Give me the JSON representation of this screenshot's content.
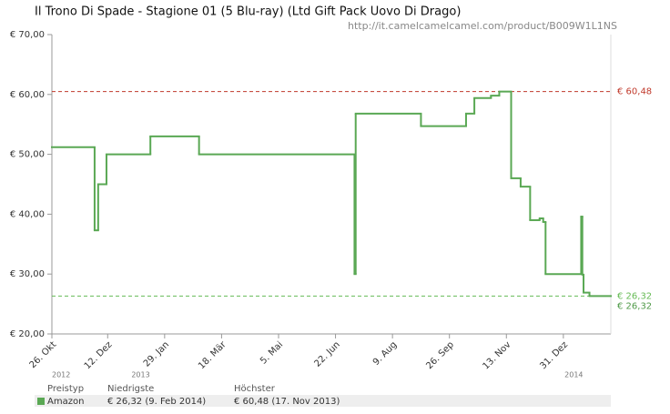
{
  "chart_data": {
    "type": "step-line",
    "title": "Il Trono Di Spade - Stagione 01 (5 Blu-ray) (Ltd Gift Pack Uovo Di Drago)",
    "source_url": "http://it.camelcamelcamel.com/product/B009W1L1NS",
    "x": [
      "2012-10-26",
      "2012-12-01",
      "2012-12-04",
      "2012-12-11",
      "2013-01-17",
      "2013-02-27",
      "2013-07-08",
      "2013-07-09",
      "2013-09-02",
      "2013-10-10",
      "2013-10-17",
      "2013-10-31",
      "2013-11-07",
      "2013-11-17",
      "2013-11-25",
      "2013-12-03",
      "2013-12-11",
      "2013-12-14",
      "2013-12-16",
      "2014-01-15",
      "2014-01-16",
      "2014-01-17",
      "2014-01-22"
    ],
    "series": [
      {
        "name": "Amazon",
        "color": "#5aa854",
        "values": [
          51.2,
          37.3,
          45,
          50,
          53,
          50,
          30,
          56.8,
          54.7,
          56.8,
          59.4,
          59.8,
          60.48,
          46,
          44.6,
          39,
          39.3,
          38.7,
          30,
          39.6,
          29.9,
          26.9,
          26.32
        ]
      }
    ],
    "xlim": [
      "2012-10-26",
      "2014-02-09"
    ],
    "xticks": [
      {
        "value": "2012-10-26",
        "label": "26. Okt"
      },
      {
        "value": "2012-12-12",
        "label": "12. Dez"
      },
      {
        "value": "2013-01-29",
        "label": "29. Jan"
      },
      {
        "value": "2013-03-18",
        "label": "18. Mär"
      },
      {
        "value": "2013-05-05",
        "label": "5. Mai"
      },
      {
        "value": "2013-06-22",
        "label": "22. Jun"
      },
      {
        "value": "2013-08-09",
        "label": "9. Aug"
      },
      {
        "value": "2013-09-26",
        "label": "26. Sep"
      },
      {
        "value": "2013-11-13",
        "label": "13. Nov"
      },
      {
        "value": "2013-12-31",
        "label": "31. Dez"
      }
    ],
    "year_labels": [
      {
        "value": "2012-10-26",
        "label": "2012"
      },
      {
        "value": "2013-01-01",
        "label": "2013"
      },
      {
        "value": "2014-01-01",
        "label": "2014"
      }
    ],
    "ylim": [
      20,
      70
    ],
    "yticks": [
      {
        "value": 20,
        "label": "€ 20,00"
      },
      {
        "value": 30,
        "label": "€ 30,00"
      },
      {
        "value": 40,
        "label": "€ 40,00"
      },
      {
        "value": 50,
        "label": "€ 50,00"
      },
      {
        "value": 60,
        "label": "€ 60,00"
      },
      {
        "value": 70,
        "label": "€ 70,00"
      }
    ],
    "reference_lines": [
      {
        "value": 60.48,
        "label": "€ 60,48",
        "color": "#c0392b"
      },
      {
        "value": 26.32,
        "label": "€ 26,32",
        "color": "#66bb55"
      }
    ],
    "current_price": {
      "value": 26.32,
      "label": "€ 26,32",
      "color": "#4f9a48"
    },
    "price_table": {
      "headers": [
        "Preistyp",
        "Niedrigste",
        "Höchster"
      ],
      "rows": [
        [
          "Amazon",
          "€ 26,32 (9. Feb 2014)",
          "€ 60,48 (17. Nov 2013)"
        ]
      ]
    }
  }
}
